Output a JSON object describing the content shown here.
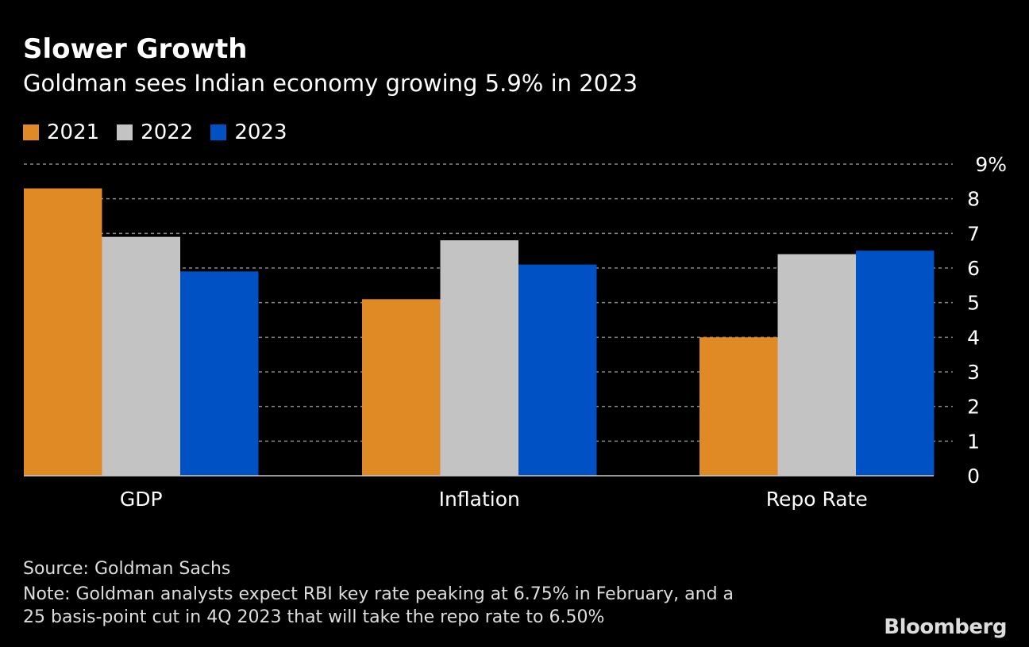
{
  "title": "Slower Growth",
  "subtitle": "Goldman sees Indian economy growing 5.9% in 2023",
  "chart_data": {
    "type": "bar",
    "categories": [
      "GDP",
      "Inflation",
      "Repo Rate"
    ],
    "series": [
      {
        "name": "2021",
        "color": "#e08a26",
        "values": [
          8.3,
          5.1,
          4.0
        ]
      },
      {
        "name": "2022",
        "color": "#c3c3c3",
        "values": [
          6.9,
          6.8,
          6.4
        ]
      },
      {
        "name": "2023",
        "color": "#0052c4",
        "values": [
          5.9,
          6.1,
          6.5
        ]
      }
    ],
    "ylim": [
      0,
      9
    ],
    "yticks": [
      "0",
      "1",
      "2",
      "3",
      "4",
      "5",
      "6",
      "7",
      "8",
      "9%"
    ],
    "grid": true,
    "legend": "top-left"
  },
  "source": "Source: Goldman Sachs",
  "note_line1": "Note: Goldman analysts expect RBI key rate peaking at 6.75% in February, and a",
  "note_line2": "25 basis-point cut in 4Q 2023 that will take the repo rate to 6.50%",
  "brand": "Bloomberg"
}
